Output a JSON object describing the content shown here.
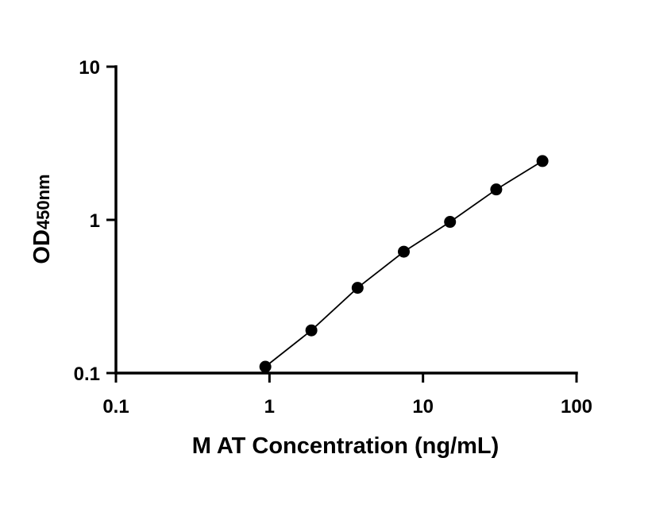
{
  "chart_data": {
    "type": "scatter",
    "title": "",
    "xlabel": "M AT Concentration (ng/mL)",
    "ylabel_main": "OD",
    "ylabel_sub": "450nm",
    "x_scale": "log",
    "y_scale": "log",
    "xlim": [
      0.1,
      100
    ],
    "ylim": [
      0.1,
      10
    ],
    "x_ticks": [
      0.1,
      1,
      10,
      100
    ],
    "x_tick_labels": [
      "0.1",
      "1",
      "10",
      "100"
    ],
    "y_ticks": [
      0.1,
      1,
      10
    ],
    "y_tick_labels": [
      "0.1",
      "1",
      "10"
    ],
    "grid": false,
    "fit_line": true,
    "series": [
      {
        "x": [
          0.94,
          1.875,
          3.75,
          7.5,
          15,
          30,
          60
        ],
        "y": [
          0.11,
          0.19,
          0.36,
          0.62,
          0.97,
          1.58,
          2.42
        ]
      }
    ],
    "colors": {
      "marker": "#000000",
      "line": "#000000",
      "axis": "#000000"
    }
  }
}
